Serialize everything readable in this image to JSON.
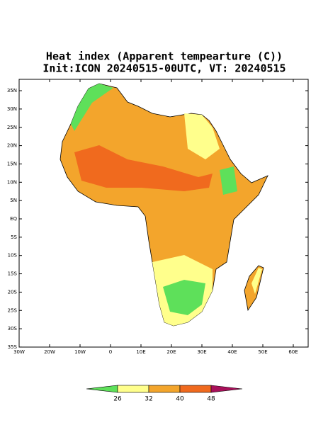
{
  "map": {
    "title": [
      "Heat index (Apparent tempearture (C))",
      "Init:ICON 20240515-00UTC, VT: 20240515"
    ],
    "lat_ticks": [
      {
        "value": 35,
        "label": "35N"
      },
      {
        "value": 30,
        "label": "30N"
      },
      {
        "value": 25,
        "label": "25N"
      },
      {
        "value": 20,
        "label": "20N"
      },
      {
        "value": 15,
        "label": "15N"
      },
      {
        "value": 10,
        "label": "10N"
      },
      {
        "value": 5,
        "label": "5N"
      },
      {
        "value": 0,
        "label": "EQ"
      },
      {
        "value": -5,
        "label": "5S"
      },
      {
        "value": -10,
        "label": "10S"
      },
      {
        "value": -15,
        "label": "15S"
      },
      {
        "value": -20,
        "label": "20S"
      },
      {
        "value": -25,
        "label": "25S"
      },
      {
        "value": -30,
        "label": "30S"
      },
      {
        "value": -35,
        "label": "35S"
      }
    ],
    "lon_ticks": [
      {
        "value": -30,
        "label": "30W"
      },
      {
        "value": -20,
        "label": "20W"
      },
      {
        "value": -10,
        "label": "10W"
      },
      0,
      {
        "value": 10,
        "label": "10E"
      },
      {
        "value": 20,
        "label": "20E"
      },
      {
        "value": 30,
        "label": "30E"
      },
      {
        "value": 40,
        "label": "40E"
      },
      {
        "value": 50,
        "label": "50E"
      },
      {
        "value": 60,
        "label": "60E"
      }
    ],
    "colorbar": {
      "levels": [
        26,
        32,
        40,
        48
      ],
      "colors": [
        "#5ee05a",
        "#ffff8c",
        "#f3a52c",
        "#f06a1e",
        "#a8105a"
      ]
    }
  }
}
